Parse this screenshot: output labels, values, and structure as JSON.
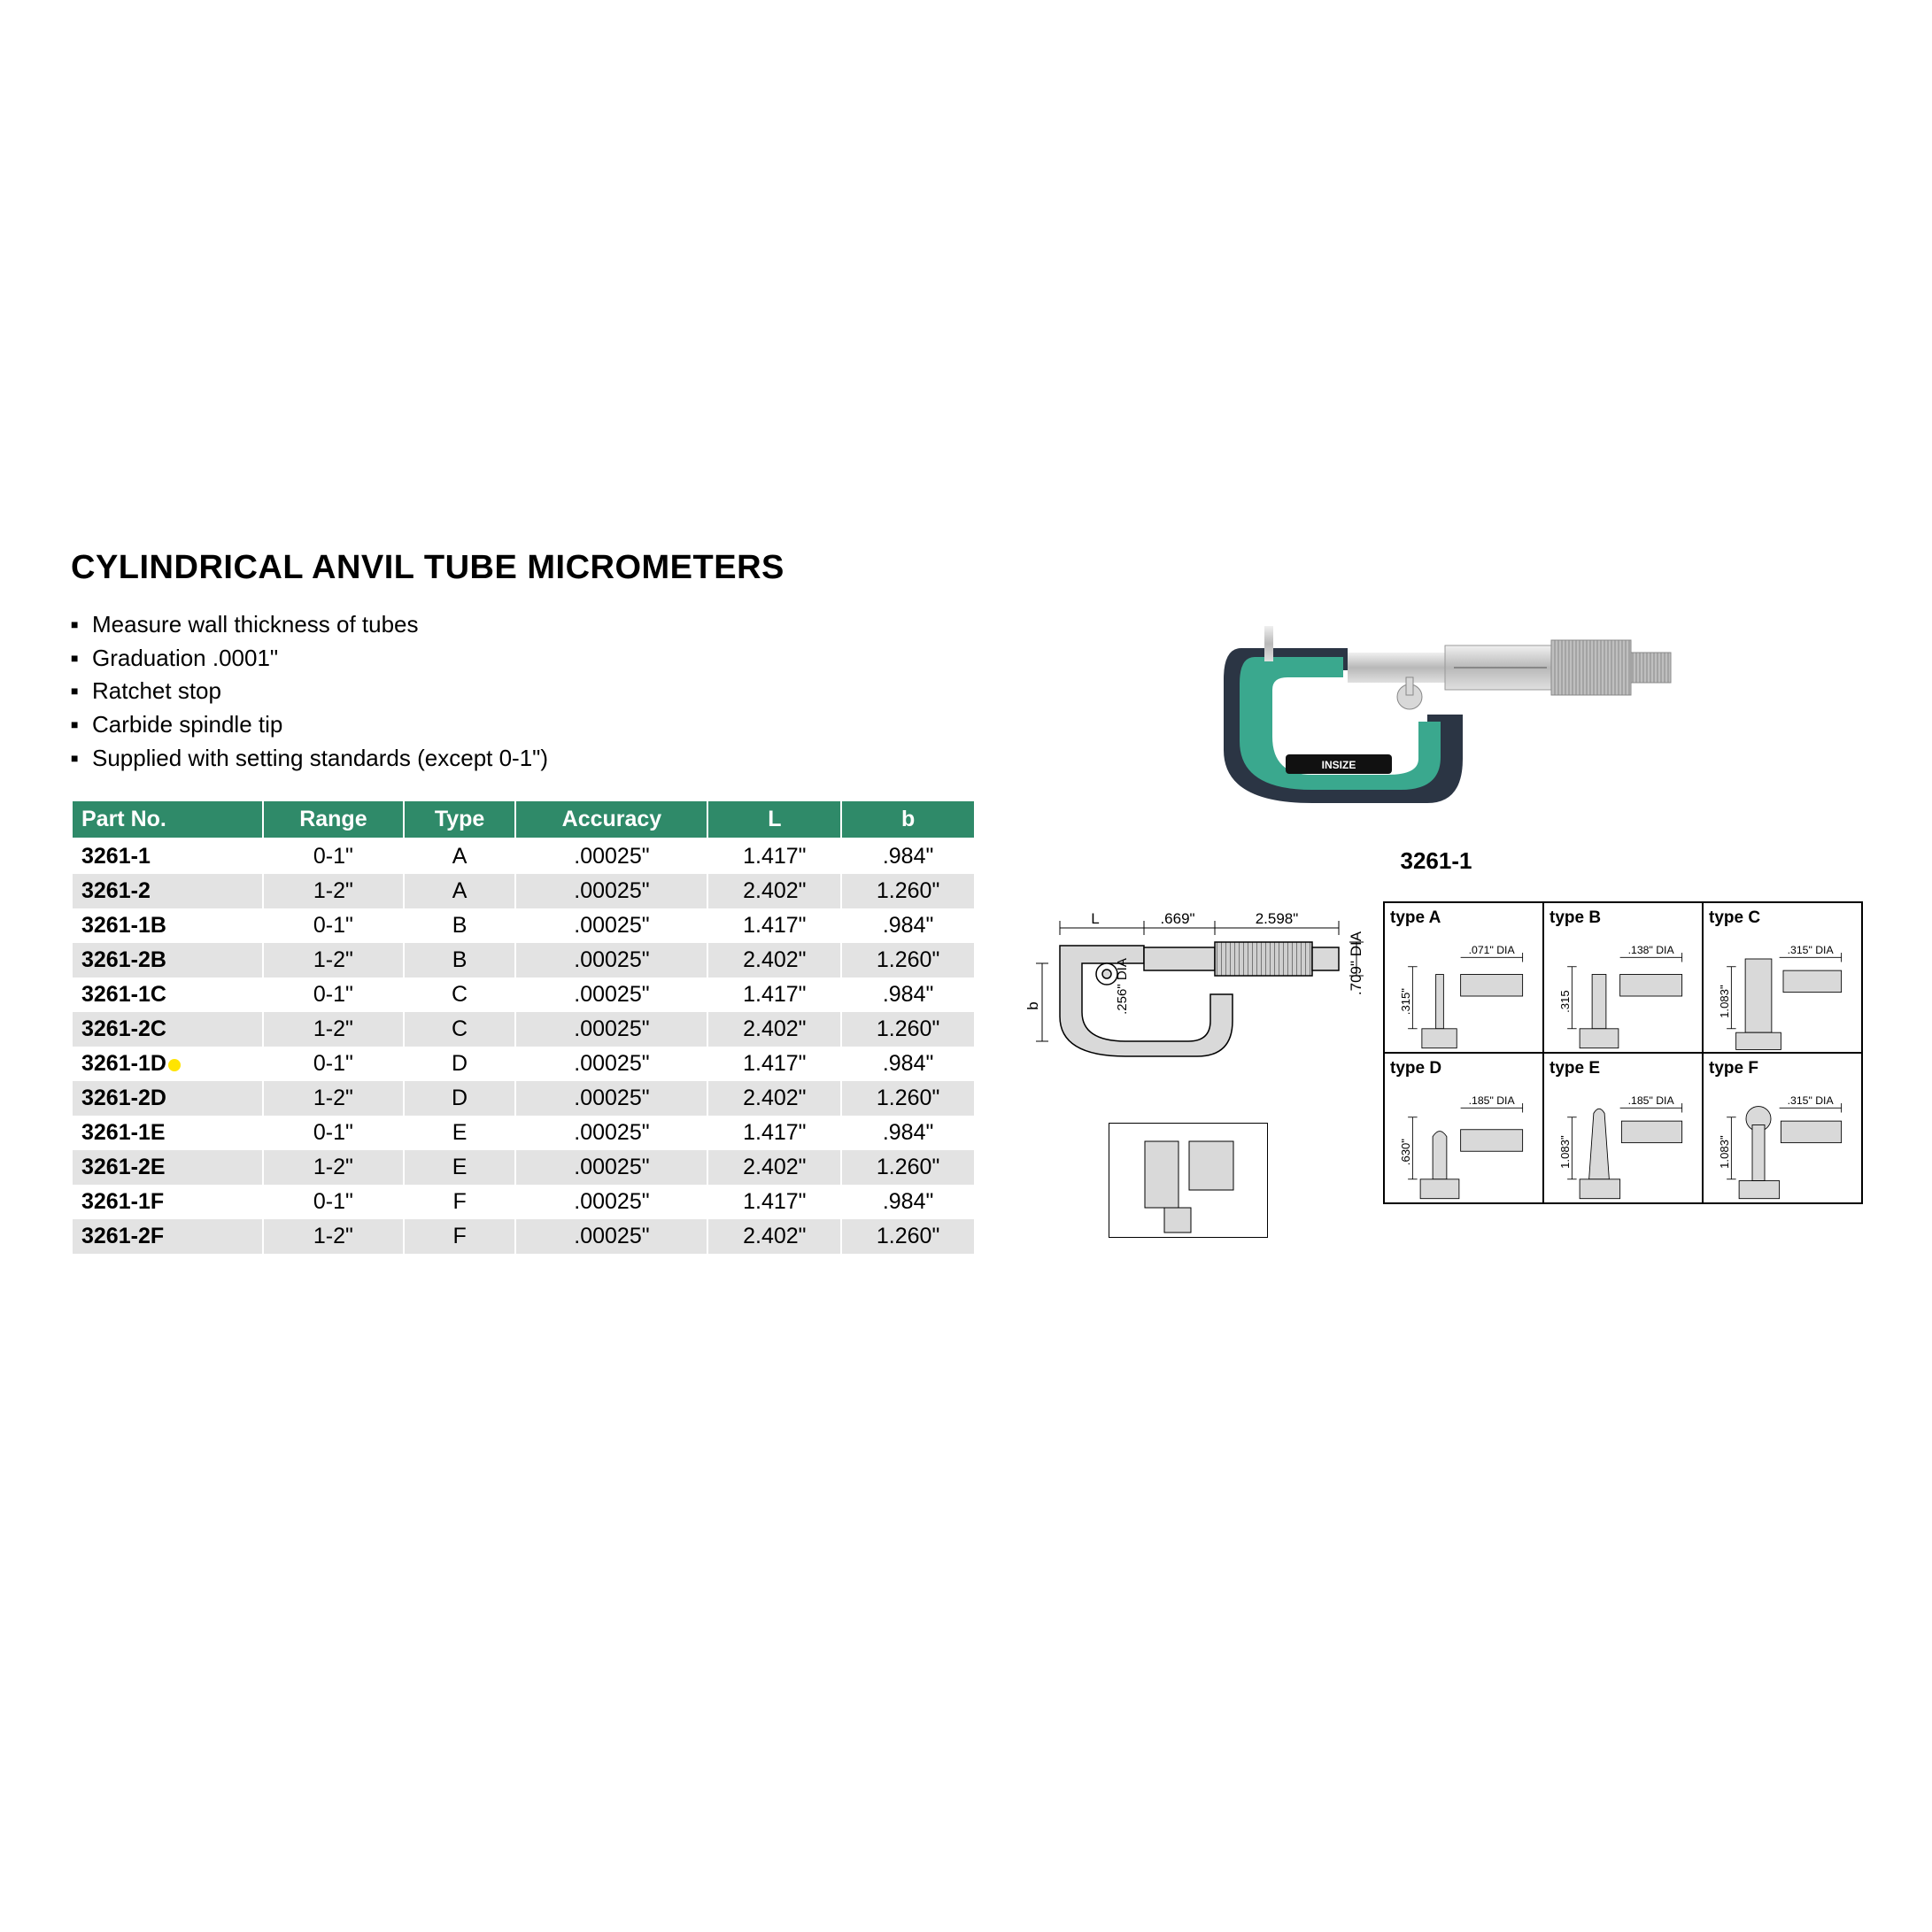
{
  "title": "CYLINDRICAL ANVIL TUBE MICROMETERS",
  "features": [
    "Measure wall thickness of tubes",
    "Graduation .0001\"",
    "Ratchet stop",
    "Carbide spindle tip",
    "Supplied with setting standards (except 0-1\")"
  ],
  "photo_label": "3261-1",
  "table": {
    "header_bg": "#2f8a69",
    "columns": [
      "Part No.",
      "Range",
      "Type",
      "Accuracy",
      "L",
      "b"
    ],
    "highlight_row_index": 6,
    "highlight_dot_color": "#ffe400",
    "rows": [
      [
        "3261-1",
        "0-1\"",
        "A",
        ".00025\"",
        "1.417\"",
        ".984\""
      ],
      [
        "3261-2",
        "1-2\"",
        "A",
        ".00025\"",
        "2.402\"",
        "1.260\""
      ],
      [
        "3261-1B",
        "0-1\"",
        "B",
        ".00025\"",
        "1.417\"",
        ".984\""
      ],
      [
        "3261-2B",
        "1-2\"",
        "B",
        ".00025\"",
        "2.402\"",
        "1.260\""
      ],
      [
        "3261-1C",
        "0-1\"",
        "C",
        ".00025\"",
        "1.417\"",
        ".984\""
      ],
      [
        "3261-2C",
        "1-2\"",
        "C",
        ".00025\"",
        "2.402\"",
        "1.260\""
      ],
      [
        "3261-1D",
        "0-1\"",
        "D",
        ".00025\"",
        "1.417\"",
        ".984\""
      ],
      [
        "3261-2D",
        "1-2\"",
        "D",
        ".00025\"",
        "2.402\"",
        "1.260\""
      ],
      [
        "3261-1E",
        "0-1\"",
        "E",
        ".00025\"",
        "1.417\"",
        ".984\""
      ],
      [
        "3261-2E",
        "1-2\"",
        "E",
        ".00025\"",
        "2.402\"",
        "1.260\""
      ],
      [
        "3261-1F",
        "0-1\"",
        "F",
        ".00025\"",
        "1.417\"",
        ".984\""
      ],
      [
        "3261-2F",
        "1-2\"",
        "F",
        ".00025\"",
        "2.402\"",
        "1.260\""
      ]
    ]
  },
  "dim_diagram": {
    "L_label": "L",
    "d1": ".669\"",
    "d2": "2.598\"",
    "d3": ".256\" DIA",
    "d4": ".709\" DIA",
    "b_label": "b"
  },
  "types": [
    {
      "label": "type A",
      "h": ".315\"",
      "dia": ".071\" DIA"
    },
    {
      "label": "type B",
      "h": ".315",
      "dia": ".138\" DIA"
    },
    {
      "label": "type C",
      "h": "1.083\"",
      "dia": ".315\" DIA"
    },
    {
      "label": "type D",
      "h": ".630\"",
      "dia": ".185\" DIA"
    },
    {
      "label": "type E",
      "h": "1.083\"",
      "dia": ".185\" DIA"
    },
    {
      "label": "type F",
      "h": "1.083\"",
      "dia": ".315\" DIA"
    }
  ],
  "colors": {
    "micrometer_teal": "#3aa88e",
    "micrometer_dark": "#2b3544",
    "micrometer_steel": "#c8c8c8",
    "diagram_gray": "#d9d9d9"
  }
}
